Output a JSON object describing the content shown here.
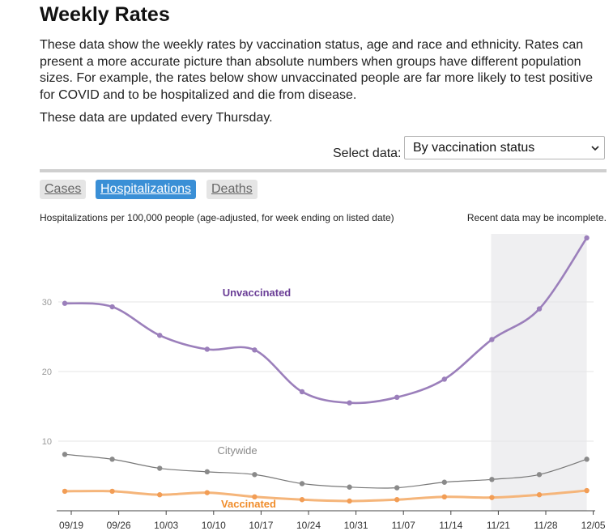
{
  "page": {
    "title": "Weekly Rates",
    "intro": "These data show the weekly rates by vaccination status, age and race and ethnicity. Rates can present a more accurate picture than absolute numbers when groups have different population sizes. For example, the rates below show unvaccinated people are far more likely to test positive for COVID and to be hospitalized and die from disease.",
    "updated_note": "These data are updated every Thursday."
  },
  "selector": {
    "label": "Select data:",
    "selected": "By vaccination status"
  },
  "tabs": [
    {
      "label": "Cases",
      "active": false
    },
    {
      "label": "Hospitalizations",
      "active": true
    },
    {
      "label": "Deaths",
      "active": false
    }
  ],
  "captions": {
    "left": "Hospitalizations per 100,000 people (age-adjusted, for week ending on listed date)",
    "right": "Recent data may be incomplete."
  },
  "colors": {
    "unvaccinated": "#9b7fbb",
    "unvaccinated_label": "#6a3d96",
    "citywide": "#8a8a8a",
    "citywide_line": "#777777",
    "vaccinated": "#f5b57a",
    "vaccinated_point": "#f29d55",
    "vaccinated_label": "#f08c2a",
    "incomplete_band": "#efeff1",
    "tab_active": "#3a8fd6"
  },
  "chart_data": {
    "type": "line",
    "categories": [
      "09/19",
      "09/26",
      "10/03",
      "10/10",
      "10/17",
      "10/24",
      "10/31",
      "11/07",
      "11/14",
      "11/21",
      "11/28",
      "12/05"
    ],
    "series": [
      {
        "name": "Unvaccinated",
        "values": [
          29.8,
          29.3,
          25.2,
          23.2,
          23.1,
          17.1,
          15.5,
          16.3,
          18.9,
          24.6,
          29.0,
          39.2
        ]
      },
      {
        "name": "Citywide",
        "values": [
          8.1,
          7.4,
          6.1,
          5.6,
          5.2,
          3.9,
          3.4,
          3.3,
          4.1,
          4.5,
          5.2,
          7.4
        ]
      },
      {
        "name": "Vaccinated",
        "values": [
          2.8,
          2.8,
          2.3,
          2.6,
          2.0,
          1.6,
          1.4,
          1.6,
          2.0,
          1.9,
          2.3,
          2.9
        ]
      }
    ],
    "yticks": [
      10,
      20,
      30
    ],
    "ylim": [
      0,
      40
    ],
    "grid": true,
    "incomplete_period": {
      "from": "11/21",
      "to": "12/05"
    }
  }
}
